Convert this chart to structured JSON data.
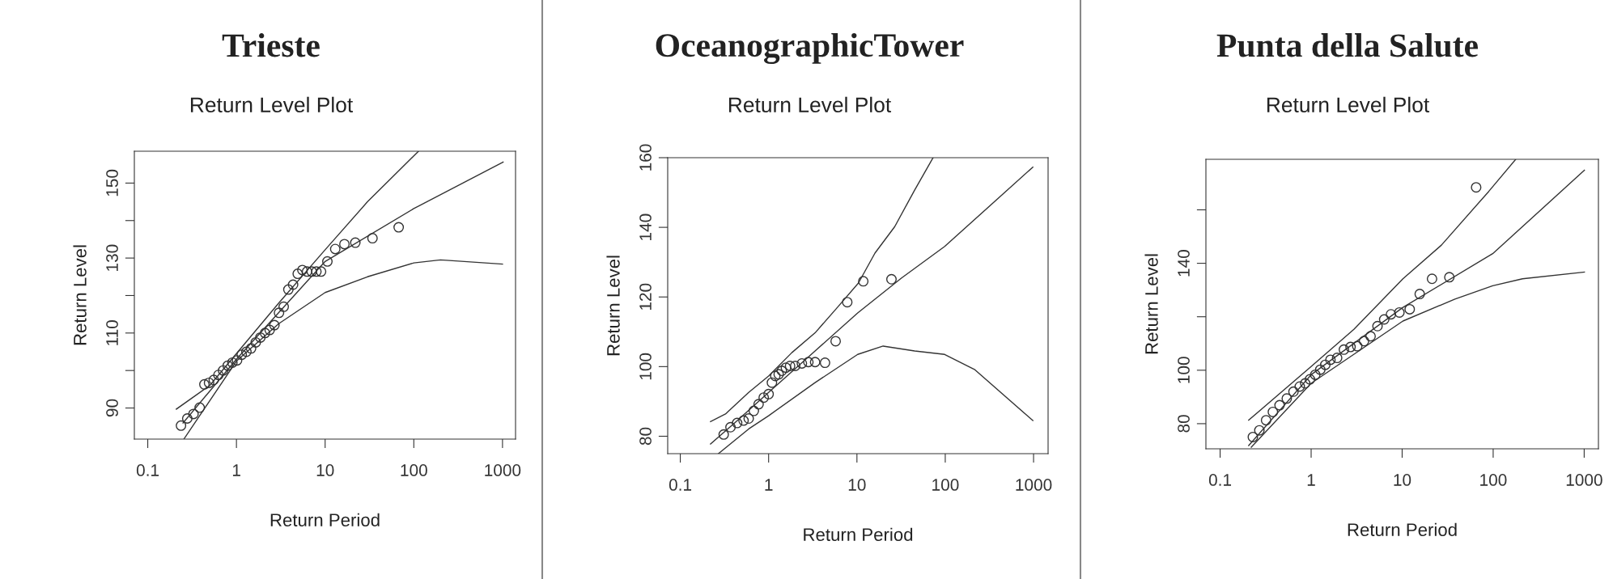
{
  "chart_data": [
    {
      "type": "line",
      "title": "Trieste",
      "subtitle": "Return Level Plot",
      "xlabel": "Return Period",
      "ylabel": "Return Level",
      "log": "x",
      "grid": false,
      "xlim": [
        0.0706,
        1403
      ],
      "ylim": [
        81.7,
        158.5
      ],
      "xticks": [
        0.1,
        1,
        10,
        100,
        1000
      ],
      "yticks": [
        90,
        {
          "value": 100,
          "label": null
        },
        110,
        {
          "value": 120,
          "label": null
        },
        130,
        {
          "value": 140,
          "label": null
        },
        150
      ],
      "series": [
        {
          "type": "scatter",
          "marker": "circle",
          "color": "#333333",
          "x": [
            0.237,
            0.279,
            0.328,
            0.385,
            0.435,
            0.491,
            0.555,
            0.626,
            0.707,
            0.798,
            0.9,
            1.016,
            1.147,
            1.295,
            1.462,
            1.65,
            1.86,
            2.1,
            2.37,
            2.68,
            3.02,
            3.41,
            3.85,
            4.35,
            4.91,
            5.54,
            6.25,
            7.06,
            7.97,
            9.0,
            10.6,
            13,
            16.5,
            21.9,
            34.2,
            67.5
          ],
          "values": [
            85.3,
            87.2,
            88.4,
            90.1,
            96.3,
            96.7,
            97.5,
            98.8,
            100,
            101.3,
            102.1,
            102.7,
            104.2,
            105,
            105.9,
            107.5,
            108.8,
            110,
            110.8,
            112.1,
            115.4,
            117,
            121.6,
            122.9,
            125.8,
            126.8,
            126.4,
            126.4,
            126.4,
            126.4,
            129.1,
            132.4,
            133.7,
            134.1,
            135.3,
            138.2
          ]
        },
        {
          "color": "#333333",
          "x": [
            0.21,
            0.5,
            1,
            3,
            10,
            30,
            113
          ],
          "values": [
            89.7,
            96,
            104.5,
            118,
            132.2,
            145,
            158.5
          ]
        },
        {
          "color": "#333333",
          "x": [
            0.25,
            1,
            10,
            100,
            1016
          ],
          "values": [
            86,
            103,
            129.1,
            143.2,
            155.6
          ]
        },
        {
          "color": "#333333",
          "x": [
            0.257,
            1,
            3,
            10,
            30,
            100,
            200,
            1000
          ],
          "values": [
            81.8,
            102.5,
            112.5,
            120.8,
            125,
            128.7,
            129.5,
            128.4
          ]
        }
      ]
    },
    {
      "type": "line",
      "title": "OceanographicTower",
      "subtitle": "Return Level Plot",
      "xlabel": "Return Period",
      "ylabel": "Return Level",
      "log": "x",
      "grid": false,
      "xlim": [
        0.072,
        1460
      ],
      "ylim": [
        75,
        160
      ],
      "xticks": [
        0.1,
        1,
        10,
        100,
        1000
      ],
      "yticks": [
        80,
        100,
        120,
        140,
        160
      ],
      "series": [
        {
          "type": "scatter",
          "marker": "circle",
          "color": "#333333",
          "x": [
            0.31,
            0.37,
            0.44,
            0.52,
            0.595,
            0.68,
            0.77,
            0.88,
            1,
            1.09,
            1.19,
            1.3,
            1.41,
            1.57,
            1.75,
            2,
            2.38,
            2.82,
            3.36,
            4.35,
            5.74,
            7.77,
            11.8,
            24.6
          ],
          "values": [
            80.5,
            82.6,
            83.8,
            84.5,
            85.1,
            87.3,
            89.2,
            91.1,
            92.1,
            95.4,
            97.3,
            97.8,
            98.8,
            99.7,
            100.2,
            100.2,
            100.9,
            101.3,
            101.3,
            101.1,
            107.3,
            118.5,
            124.5,
            125.1
          ]
        },
        {
          "color": "#333333",
          "x": [
            0.22,
            0.325,
            0.595,
            1,
            1.83,
            3.36,
            6.15,
            10.4,
            16,
            26.8,
            45,
            72.8
          ],
          "values": [
            84.2,
            86.4,
            92.6,
            97.3,
            104,
            109.7,
            117.3,
            124,
            132.6,
            140.2,
            150.7,
            160
          ]
        },
        {
          "color": "#333333",
          "x": [
            0.22,
            0.42,
            1,
            3.36,
            10.2,
            31.8,
            98.5,
            982
          ],
          "values": [
            77.8,
            84,
            92.6,
            104.5,
            115.4,
            125.4,
            134.5,
            157.3
          ]
        },
        {
          "color": "#333333",
          "x": [
            0.27,
            0.595,
            1,
            3.36,
            10.2,
            19.8,
            45,
            98.5,
            214,
            982
          ],
          "values": [
            75,
            82.1,
            85.9,
            95.4,
            103.5,
            105.9,
            104.5,
            103.5,
            99.2,
            84.5
          ]
        }
      ]
    },
    {
      "type": "line",
      "title": "Punta della Salute",
      "subtitle": "Return Level Plot",
      "xlabel": "Return Period",
      "ylabel": "Return Level",
      "log": "x",
      "grid": false,
      "xlim": [
        0.0698,
        1434
      ],
      "ylim": [
        70.6,
        178.9
      ],
      "xticks": [
        0.1,
        1,
        10,
        100,
        1000
      ],
      "yticks": [
        80,
        100,
        {
          "value": 120,
          "label": null
        },
        140,
        {
          "value": 160,
          "label": null
        }
      ],
      "series": [
        {
          "type": "scatter",
          "marker": "circle",
          "color": "#333333",
          "x": [
            0.229,
            0.27,
            0.32,
            0.38,
            0.45,
            0.54,
            0.64,
            0.75,
            0.86,
            0.97,
            1.11,
            1.26,
            1.43,
            1.63,
            1.93,
            2.29,
            2.71,
            3.21,
            3.81,
            4.5,
            5.36,
            6.35,
            7.53,
            9.33,
            12.1,
            15.6,
            21.3,
            33,
            65
          ],
          "values": [
            75,
            77.5,
            81.3,
            84.4,
            86.9,
            89.4,
            92,
            93.9,
            95.1,
            96.6,
            98.3,
            100.2,
            102,
            103.9,
            104.6,
            107.7,
            108.7,
            109,
            110.9,
            112.7,
            116.5,
            119,
            120.9,
            121.6,
            122.8,
            128.5,
            134.2,
            134.8,
            168.4
          ]
        },
        {
          "color": "#333333",
          "x": [
            0.206,
            1,
            2.95,
            10.2,
            27,
            89.5,
            177
          ],
          "values": [
            81.3,
            101.4,
            115.3,
            134.2,
            146.8,
            166.9,
            178.9
          ]
        },
        {
          "color": "#333333",
          "x": [
            0.206,
            1,
            10.2,
            98.8,
            1006
          ],
          "values": [
            71.8,
            98.3,
            123.5,
            143.6,
            174.8
          ]
        },
        {
          "color": "#333333",
          "x": [
            0.22,
            1,
            10.2,
            38,
            98.8,
            210,
            1006
          ],
          "values": [
            71.2,
            95.1,
            118.4,
            126.6,
            131.6,
            134.2,
            136.7
          ]
        }
      ]
    }
  ]
}
